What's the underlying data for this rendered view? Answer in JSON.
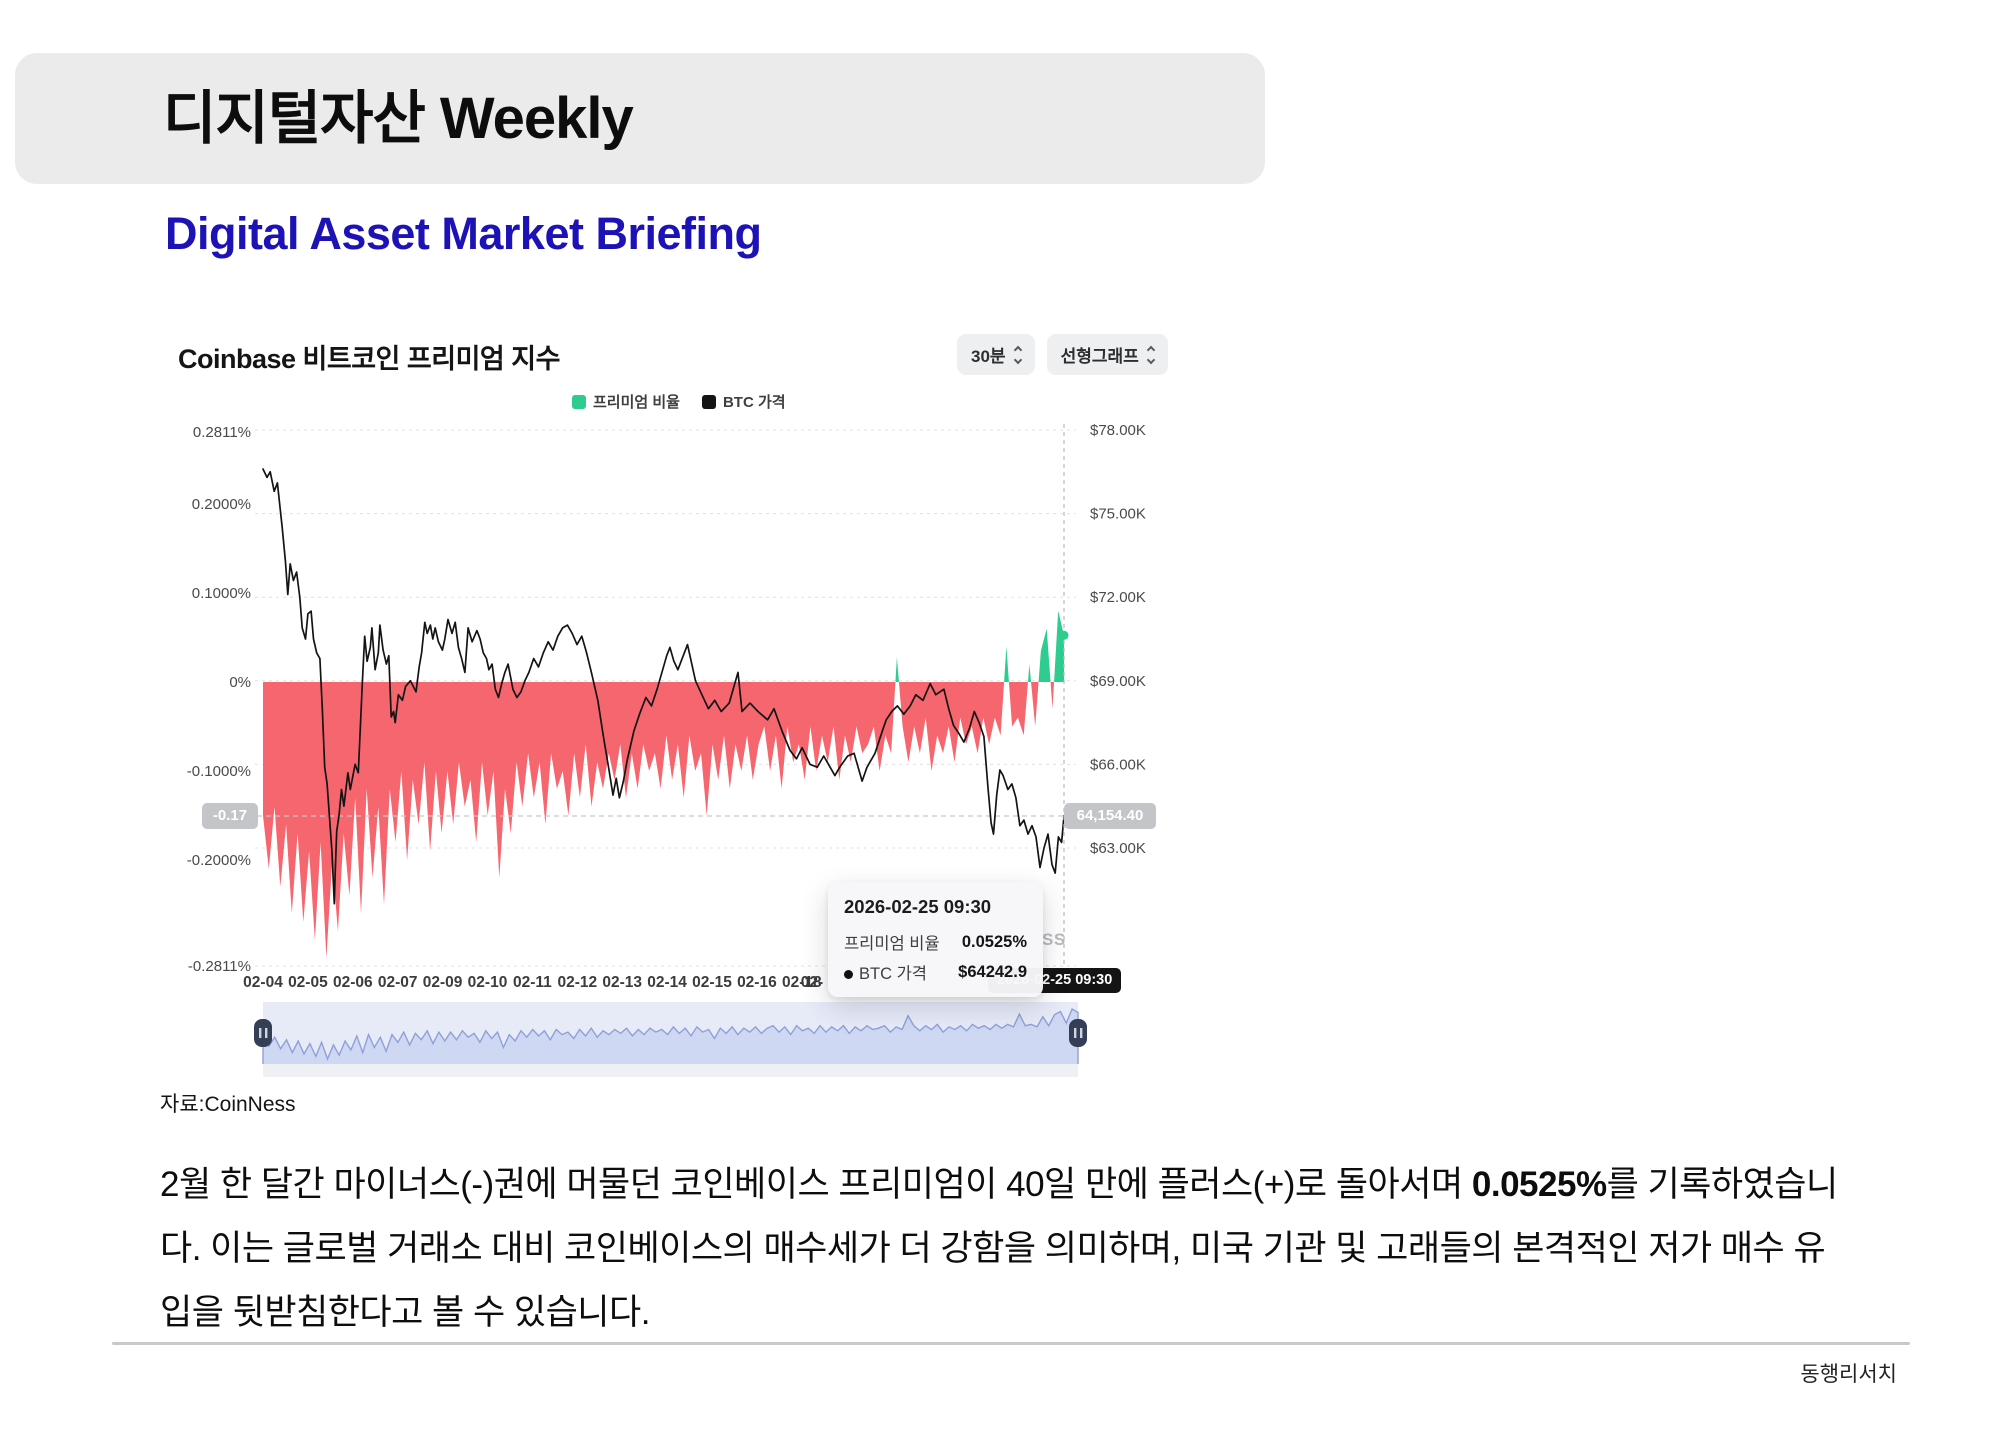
{
  "header": {
    "title": "디지털자산 Weekly",
    "subtitle": "Digital Asset Market Briefing",
    "accent_color": "#1d12b5"
  },
  "chart": {
    "title": "Coinbase 비트코인 프리미엄 지수",
    "controls": [
      {
        "label": "30분"
      },
      {
        "label": "선형그래프"
      }
    ],
    "legend": [
      {
        "label": "프리미엄 비율",
        "color": "#2ecc8e"
      },
      {
        "label": "BTC 가격",
        "color": "#141414"
      }
    ],
    "watermark_visible": "SS",
    "crosshair": {
      "time": "2026-02-25 09:30",
      "left_axis_value": "-0.17",
      "right_axis_value": "64,154.40"
    },
    "tooltip": {
      "title": "2026-02-25 09:30",
      "rows": [
        {
          "label": "프리미엄 비율",
          "value": "0.0525%",
          "bullet": false
        },
        {
          "label": "BTC 가격",
          "value": "$64242.9",
          "bullet": true
        }
      ]
    }
  },
  "chart_data": {
    "type": "line+area",
    "title": "Coinbase 비트코인 프리미엄 지수",
    "legend_position": "top",
    "grid": true,
    "x_tick_labels": [
      "02-04",
      "02-05",
      "02-06",
      "02-07",
      "02-09",
      "02-10",
      "02-11",
      "02-12",
      "02-13",
      "02-14",
      "02-15",
      "02-16",
      "02-18",
      "02-"
    ],
    "left_axis": {
      "name": "프리미엄 비율 (%)",
      "tick_values": [
        0.2811,
        0.2,
        0.1,
        0,
        -0.1,
        -0.2,
        -0.2811
      ],
      "tick_labels": [
        "0.2811%",
        "0.2000%",
        "0.1000%",
        "0%",
        "-0.1000%",
        "-0.2000%",
        "-0.2811%"
      ],
      "range": [
        -0.2811,
        0.2811
      ]
    },
    "right_axis": {
      "name": "BTC 가격 ($K)",
      "tick_values": [
        78,
        75,
        72,
        69,
        66,
        63
      ],
      "tick_labels": [
        "$78.00K",
        "$75.00K",
        "$72.00K",
        "$69.00K",
        "$66.00K",
        "$63.00K"
      ],
      "range_k": [
        59.5,
        78
      ]
    },
    "series": [
      {
        "name": "프리미엄 비율",
        "type": "area",
        "unit": "%",
        "color_negative": "#f5666f",
        "color_positive": "#2ecc8e",
        "values": [
          -0.15,
          -0.21,
          -0.14,
          -0.23,
          -0.16,
          -0.26,
          -0.17,
          -0.27,
          -0.19,
          -0.29,
          -0.18,
          -0.31,
          -0.2,
          -0.28,
          -0.17,
          -0.24,
          -0.13,
          -0.26,
          -0.12,
          -0.22,
          -0.14,
          -0.25,
          -0.12,
          -0.18,
          -0.1,
          -0.2,
          -0.11,
          -0.16,
          -0.09,
          -0.19,
          -0.1,
          -0.17,
          -0.1,
          -0.16,
          -0.09,
          -0.14,
          -0.11,
          -0.18,
          -0.09,
          -0.15,
          -0.1,
          -0.22,
          -0.12,
          -0.17,
          -0.09,
          -0.14,
          -0.08,
          -0.13,
          -0.09,
          -0.16,
          -0.08,
          -0.12,
          -0.1,
          -0.15,
          -0.08,
          -0.13,
          -0.07,
          -0.14,
          -0.09,
          -0.12,
          -0.08,
          -0.11,
          -0.07,
          -0.13,
          -0.08,
          -0.12,
          -0.07,
          -0.1,
          -0.08,
          -0.12,
          -0.06,
          -0.11,
          -0.07,
          -0.13,
          -0.06,
          -0.1,
          -0.08,
          -0.15,
          -0.07,
          -0.11,
          -0.06,
          -0.12,
          -0.07,
          -0.1,
          -0.06,
          -0.11,
          -0.07,
          -0.05,
          -0.1,
          -0.06,
          -0.12,
          -0.05,
          -0.09,
          -0.07,
          -0.11,
          -0.05,
          -0.1,
          -0.06,
          -0.09,
          -0.05,
          -0.11,
          -0.06,
          -0.09,
          -0.05,
          -0.08,
          -0.07,
          -0.05,
          -0.1,
          -0.06,
          -0.08,
          0.028,
          -0.05,
          -0.09,
          -0.05,
          -0.08,
          -0.04,
          -0.1,
          -0.06,
          -0.08,
          -0.05,
          -0.09,
          -0.04,
          -0.07,
          -0.05,
          -0.08,
          -0.04,
          -0.07,
          -0.04,
          -0.06,
          0.04,
          -0.05,
          -0.04,
          -0.06,
          0.02,
          -0.05,
          0.035,
          0.06,
          -0.03,
          0.08,
          0.0525
        ]
      },
      {
        "name": "BTC 가격",
        "type": "line",
        "unit": "$K",
        "color": "#141414",
        "points": [
          [
            0,
            76.6
          ],
          [
            0.005,
            76.3
          ],
          [
            0.009,
            76.5
          ],
          [
            0.014,
            75.8
          ],
          [
            0.018,
            76.1
          ],
          [
            0.024,
            74.5
          ],
          [
            0.028,
            73.3
          ],
          [
            0.031,
            72.1
          ],
          [
            0.034,
            73.2
          ],
          [
            0.038,
            72.6
          ],
          [
            0.042,
            72.9
          ],
          [
            0.046,
            72.0
          ],
          [
            0.049,
            70.9
          ],
          [
            0.053,
            70.5
          ],
          [
            0.056,
            71.4
          ],
          [
            0.06,
            71.5
          ],
          [
            0.063,
            70.5
          ],
          [
            0.067,
            70.0
          ],
          [
            0.071,
            69.8
          ],
          [
            0.074,
            68.0
          ],
          [
            0.077,
            65.9
          ],
          [
            0.08,
            65.3
          ],
          [
            0.084,
            63.7
          ],
          [
            0.086,
            62.9
          ],
          [
            0.089,
            61.0
          ],
          [
            0.09,
            62.0
          ],
          [
            0.092,
            63.6
          ],
          [
            0.095,
            64.2
          ],
          [
            0.098,
            65.1
          ],
          [
            0.101,
            64.5
          ],
          [
            0.106,
            65.7
          ],
          [
            0.109,
            65.1
          ],
          [
            0.115,
            66.0
          ],
          [
            0.119,
            65.7
          ],
          [
            0.124,
            68.9
          ],
          [
            0.127,
            70.6
          ],
          [
            0.13,
            69.7
          ],
          [
            0.134,
            70.2
          ],
          [
            0.136,
            70.9
          ],
          [
            0.14,
            69.4
          ],
          [
            0.144,
            70.0
          ],
          [
            0.146,
            71.0
          ],
          [
            0.15,
            70.1
          ],
          [
            0.154,
            69.6
          ],
          [
            0.157,
            69.9
          ],
          [
            0.16,
            67.7
          ],
          [
            0.163,
            67.9
          ],
          [
            0.165,
            67.5
          ],
          [
            0.169,
            68.5
          ],
          [
            0.174,
            68.3
          ],
          [
            0.178,
            68.8
          ],
          [
            0.184,
            69.0
          ],
          [
            0.191,
            68.6
          ],
          [
            0.195,
            69.5
          ],
          [
            0.198,
            70.0
          ],
          [
            0.202,
            71.1
          ],
          [
            0.205,
            70.7
          ],
          [
            0.209,
            71.0
          ],
          [
            0.212,
            70.5
          ],
          [
            0.215,
            70.9
          ],
          [
            0.219,
            70.4
          ],
          [
            0.224,
            70.1
          ],
          [
            0.227,
            70.5
          ],
          [
            0.231,
            71.2
          ],
          [
            0.236,
            70.7
          ],
          [
            0.24,
            71.1
          ],
          [
            0.244,
            70.2
          ],
          [
            0.248,
            69.8
          ],
          [
            0.252,
            69.3
          ],
          [
            0.256,
            70.9
          ],
          [
            0.261,
            70.4
          ],
          [
            0.267,
            70.8
          ],
          [
            0.271,
            70.5
          ],
          [
            0.275,
            70.0
          ],
          [
            0.279,
            69.8
          ],
          [
            0.282,
            69.4
          ],
          [
            0.286,
            69.6
          ],
          [
            0.29,
            68.7
          ],
          [
            0.294,
            68.4
          ],
          [
            0.298,
            68.9
          ],
          [
            0.302,
            69.3
          ],
          [
            0.306,
            69.6
          ],
          [
            0.312,
            68.7
          ],
          [
            0.317,
            68.4
          ],
          [
            0.322,
            68.6
          ],
          [
            0.327,
            69.0
          ],
          [
            0.332,
            69.3
          ],
          [
            0.338,
            69.8
          ],
          [
            0.344,
            69.5
          ],
          [
            0.35,
            70.0
          ],
          [
            0.356,
            70.4
          ],
          [
            0.362,
            70.1
          ],
          [
            0.368,
            70.6
          ],
          [
            0.374,
            70.9
          ],
          [
            0.38,
            71.0
          ],
          [
            0.386,
            70.7
          ],
          [
            0.392,
            70.3
          ],
          [
            0.398,
            70.6
          ],
          [
            0.404,
            70.0
          ],
          [
            0.41,
            69.3
          ],
          [
            0.418,
            68.3
          ],
          [
            0.425,
            67.0
          ],
          [
            0.432,
            65.8
          ],
          [
            0.437,
            64.9
          ],
          [
            0.441,
            65.5
          ],
          [
            0.445,
            64.8
          ],
          [
            0.45,
            65.4
          ],
          [
            0.455,
            66.2
          ],
          [
            0.463,
            67.2
          ],
          [
            0.47,
            67.8
          ],
          [
            0.478,
            68.4
          ],
          [
            0.485,
            68.1
          ],
          [
            0.492,
            68.7
          ],
          [
            0.499,
            69.4
          ],
          [
            0.504,
            69.9
          ],
          [
            0.508,
            70.2
          ],
          [
            0.513,
            69.7
          ],
          [
            0.518,
            69.4
          ],
          [
            0.53,
            70.3
          ],
          [
            0.54,
            69.0
          ],
          [
            0.548,
            68.5
          ],
          [
            0.556,
            68.0
          ],
          [
            0.564,
            68.3
          ],
          [
            0.572,
            67.9
          ],
          [
            0.582,
            68.2
          ],
          [
            0.593,
            69.3
          ],
          [
            0.598,
            67.9
          ],
          [
            0.608,
            68.2
          ],
          [
            0.618,
            67.9
          ],
          [
            0.63,
            67.6
          ],
          [
            0.638,
            68.0
          ],
          [
            0.648,
            67.2
          ],
          [
            0.658,
            66.5
          ],
          [
            0.666,
            66.2
          ],
          [
            0.673,
            66.6
          ],
          [
            0.683,
            66.0
          ],
          [
            0.692,
            65.9
          ],
          [
            0.7,
            66.3
          ],
          [
            0.708,
            65.9
          ],
          [
            0.714,
            65.6
          ],
          [
            0.72,
            65.9
          ],
          [
            0.73,
            66.3
          ],
          [
            0.738,
            66.4
          ],
          [
            0.748,
            65.4
          ],
          [
            0.754,
            65.9
          ],
          [
            0.764,
            66.4
          ],
          [
            0.772,
            67.1
          ],
          [
            0.778,
            67.6
          ],
          [
            0.785,
            67.9
          ],
          [
            0.792,
            68.1
          ],
          [
            0.8,
            67.8
          ],
          [
            0.808,
            68.1
          ],
          [
            0.815,
            68.5
          ],
          [
            0.824,
            68.3
          ],
          [
            0.833,
            68.9
          ],
          [
            0.84,
            68.5
          ],
          [
            0.85,
            68.7
          ],
          [
            0.856,
            68.0
          ],
          [
            0.862,
            67.4
          ],
          [
            0.869,
            67.1
          ],
          [
            0.875,
            66.8
          ],
          [
            0.882,
            67.3
          ],
          [
            0.888,
            67.9
          ],
          [
            0.894,
            67.5
          ],
          [
            0.9,
            67.0
          ],
          [
            0.905,
            65.2
          ],
          [
            0.909,
            63.9
          ],
          [
            0.912,
            63.5
          ],
          [
            0.916,
            64.9
          ],
          [
            0.92,
            65.8
          ],
          [
            0.924,
            65.6
          ],
          [
            0.93,
            65.1
          ],
          [
            0.935,
            65.3
          ],
          [
            0.94,
            64.8
          ],
          [
            0.945,
            63.8
          ],
          [
            0.95,
            64.0
          ],
          [
            0.955,
            63.5
          ],
          [
            0.96,
            63.8
          ],
          [
            0.965,
            63.4
          ],
          [
            0.97,
            62.3
          ],
          [
            0.975,
            63.0
          ],
          [
            0.98,
            63.5
          ],
          [
            0.985,
            62.4
          ],
          [
            0.989,
            62.1
          ],
          [
            0.993,
            63.4
          ],
          [
            0.997,
            63.2
          ],
          [
            1,
            64.15
          ]
        ]
      }
    ],
    "last": {
      "time": "2026-02-25 09:30",
      "premium_pct": 0.0525,
      "btc_price_usd": 64242.9,
      "btc_last_axis_label": "64,154.40",
      "premium_axis_crosshair_label": "-0.17"
    }
  },
  "source": "자료:CoinNess",
  "paragraph": {
    "pre": "2월 한 달간 마이너스(-)권에 머물던 코인베이스 프리미엄이 40일 만에 플러스(+)로 돌아서며 ",
    "bold": "0.0525%",
    "post": "를 기록하였습니다. 이는 글로벌 거래소 대비 코인베이스의 매수세가 더 강함을 의미하며, 미국 기관 및 고래들의 본격적인 저가 매수 유입을 뒷받침한다고 볼 수 있습니다."
  },
  "footer": {
    "brand": "동행리서치"
  }
}
